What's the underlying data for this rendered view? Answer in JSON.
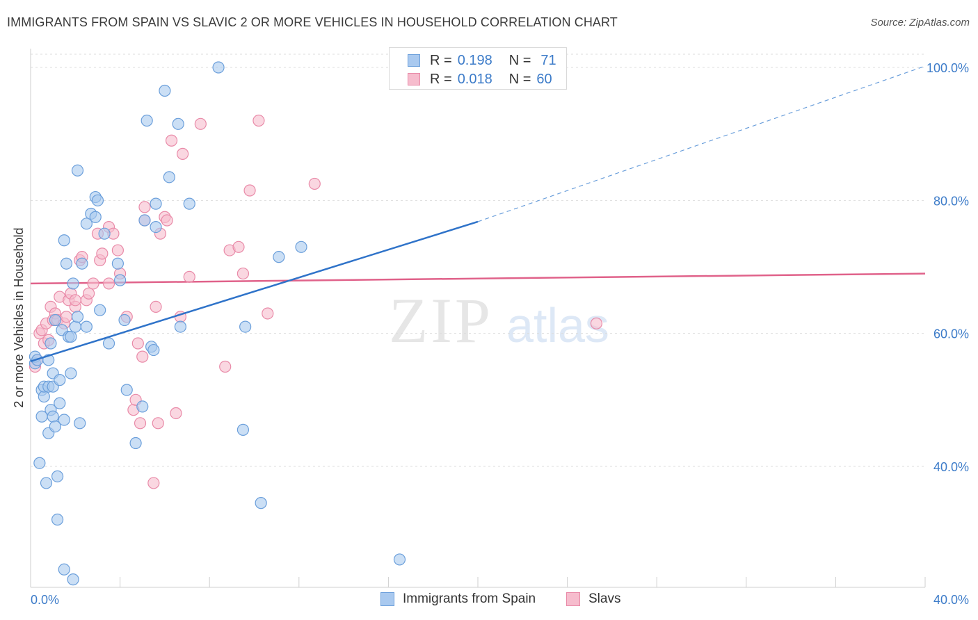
{
  "title": "IMMIGRANTS FROM SPAIN VS SLAVIC 2 OR MORE VEHICLES IN HOUSEHOLD CORRELATION CHART",
  "source": "Source: ZipAtlas.com",
  "watermark": {
    "zip": "ZIP",
    "atlas": "atlas"
  },
  "colors": {
    "blue_fill": "#a9c9ef",
    "blue_stroke": "#6b9fdb",
    "blue_line": "#2f73c9",
    "pink_fill": "#f6bccd",
    "pink_stroke": "#e98aa8",
    "pink_line": "#e0628a",
    "axis_text": "#3d7cc9",
    "grid": "#dddddd"
  },
  "legend": {
    "rows": [
      {
        "r_label": "R =",
        "r_value": "0.198",
        "n_label": "N =",
        "n_value": "71"
      },
      {
        "r_label": "R =",
        "r_value": "0.018",
        "n_label": "N =",
        "n_value": "60"
      }
    ]
  },
  "bottom_legend": {
    "series1": "Immigrants from Spain",
    "series2": "Slavs"
  },
  "chart_data": {
    "type": "scatter",
    "title": "IMMIGRANTS FROM SPAIN VS SLAVIC 2 OR MORE VEHICLES IN HOUSEHOLD CORRELATION CHART",
    "xlabel": "",
    "ylabel": "2 or more Vehicles in Household",
    "xlim": [
      0,
      40
    ],
    "ylim": [
      20,
      102
    ],
    "x_tick_labels": [
      "0.0%",
      "40.0%"
    ],
    "y_ticks": [
      40,
      60,
      80,
      100
    ],
    "y_tick_labels": [
      "40.0%",
      "60.0%",
      "80.0%",
      "100.0%"
    ],
    "grid": true,
    "series": [
      {
        "name": "Immigrants from Spain",
        "r": 0.198,
        "n": 71,
        "trend": {
          "x0": 0,
          "y0": 55.8,
          "x1": 20,
          "y1": 76.8,
          "dashed_to_x": 40,
          "dashed_to_y": 100.2
        },
        "points": [
          [
            0.2,
            55.5
          ],
          [
            0.2,
            56.5
          ],
          [
            0.3,
            56.0
          ],
          [
            0.4,
            40.5
          ],
          [
            0.5,
            51.5
          ],
          [
            0.5,
            47.5
          ],
          [
            0.6,
            50.5
          ],
          [
            0.6,
            52.0
          ],
          [
            0.7,
            37.5
          ],
          [
            0.8,
            56.0
          ],
          [
            0.8,
            52.0
          ],
          [
            0.8,
            45.0
          ],
          [
            0.9,
            48.5
          ],
          [
            0.9,
            58.5
          ],
          [
            1.0,
            47.5
          ],
          [
            1.0,
            52.0
          ],
          [
            1.0,
            54.0
          ],
          [
            1.1,
            62.0
          ],
          [
            1.1,
            46.0
          ],
          [
            1.2,
            38.5
          ],
          [
            1.2,
            32.0
          ],
          [
            1.3,
            53.0
          ],
          [
            1.3,
            49.5
          ],
          [
            1.4,
            60.5
          ],
          [
            1.5,
            74.0
          ],
          [
            1.5,
            47.0
          ],
          [
            1.5,
            24.5
          ],
          [
            1.6,
            70.5
          ],
          [
            1.7,
            59.5
          ],
          [
            1.8,
            54.0
          ],
          [
            1.8,
            59.5
          ],
          [
            1.9,
            67.5
          ],
          [
            1.9,
            23.0
          ],
          [
            2.0,
            61.0
          ],
          [
            2.1,
            62.5
          ],
          [
            2.1,
            84.5
          ],
          [
            2.2,
            46.5
          ],
          [
            2.3,
            70.5
          ],
          [
            2.5,
            61.0
          ],
          [
            2.5,
            76.5
          ],
          [
            2.7,
            78.0
          ],
          [
            2.9,
            77.5
          ],
          [
            2.9,
            80.5
          ],
          [
            3.0,
            80.0
          ],
          [
            3.1,
            63.5
          ],
          [
            3.3,
            75.0
          ],
          [
            3.5,
            58.5
          ],
          [
            3.9,
            70.5
          ],
          [
            4.0,
            68.0
          ],
          [
            4.2,
            62.0
          ],
          [
            4.3,
            51.5
          ],
          [
            4.7,
            43.5
          ],
          [
            5.0,
            49.0
          ],
          [
            5.1,
            77.0
          ],
          [
            5.2,
            92.0
          ],
          [
            5.4,
            58.0
          ],
          [
            5.5,
            57.5
          ],
          [
            5.6,
            79.5
          ],
          [
            5.6,
            76.0
          ],
          [
            6.0,
            96.5
          ],
          [
            6.2,
            83.5
          ],
          [
            6.6,
            91.5
          ],
          [
            6.7,
            61.0
          ],
          [
            7.1,
            79.5
          ],
          [
            8.4,
            100.0
          ],
          [
            9.5,
            45.5
          ],
          [
            9.6,
            61.0
          ],
          [
            10.3,
            34.5
          ],
          [
            11.1,
            71.5
          ],
          [
            12.1,
            73.0
          ],
          [
            16.5,
            26.0
          ]
        ]
      },
      {
        "name": "Slavs",
        "r": 0.018,
        "n": 60,
        "trend": {
          "x0": 0,
          "y0": 67.5,
          "x1": 40,
          "y1": 69.0
        },
        "points": [
          [
            0.2,
            55.0
          ],
          [
            0.3,
            56.0
          ],
          [
            0.4,
            60.0
          ],
          [
            0.5,
            60.5
          ],
          [
            0.6,
            58.5
          ],
          [
            0.7,
            61.5
          ],
          [
            0.8,
            59.0
          ],
          [
            0.9,
            64.0
          ],
          [
            1.0,
            62.0
          ],
          [
            1.1,
            63.0
          ],
          [
            1.2,
            62.0
          ],
          [
            1.3,
            65.5
          ],
          [
            1.5,
            61.5
          ],
          [
            1.6,
            62.5
          ],
          [
            1.7,
            65.0
          ],
          [
            1.8,
            66.0
          ],
          [
            2.0,
            64.0
          ],
          [
            2.0,
            65.0
          ],
          [
            2.2,
            71.0
          ],
          [
            2.3,
            71.5
          ],
          [
            2.5,
            65.0
          ],
          [
            2.6,
            66.0
          ],
          [
            2.8,
            67.5
          ],
          [
            3.0,
            75.0
          ],
          [
            3.1,
            71.0
          ],
          [
            3.2,
            72.0
          ],
          [
            3.5,
            76.0
          ],
          [
            3.5,
            67.5
          ],
          [
            3.7,
            75.0
          ],
          [
            3.9,
            72.5
          ],
          [
            4.0,
            69.0
          ],
          [
            4.3,
            62.5
          ],
          [
            4.6,
            48.5
          ],
          [
            4.7,
            50.0
          ],
          [
            4.8,
            58.5
          ],
          [
            4.9,
            46.5
          ],
          [
            5.0,
            56.5
          ],
          [
            5.1,
            77.0
          ],
          [
            5.1,
            79.0
          ],
          [
            5.5,
            37.5
          ],
          [
            5.6,
            64.0
          ],
          [
            5.7,
            46.5
          ],
          [
            5.8,
            75.0
          ],
          [
            6.0,
            77.5
          ],
          [
            6.1,
            77.0
          ],
          [
            6.3,
            89.0
          ],
          [
            6.5,
            48.0
          ],
          [
            6.7,
            62.5
          ],
          [
            6.8,
            87.0
          ],
          [
            7.1,
            68.5
          ],
          [
            7.6,
            91.5
          ],
          [
            8.7,
            55.0
          ],
          [
            8.9,
            72.5
          ],
          [
            9.3,
            73.0
          ],
          [
            9.5,
            69.0
          ],
          [
            9.8,
            81.5
          ],
          [
            10.2,
            92.0
          ],
          [
            10.6,
            63.0
          ],
          [
            12.7,
            82.5
          ],
          [
            25.3,
            61.5
          ]
        ]
      }
    ]
  }
}
